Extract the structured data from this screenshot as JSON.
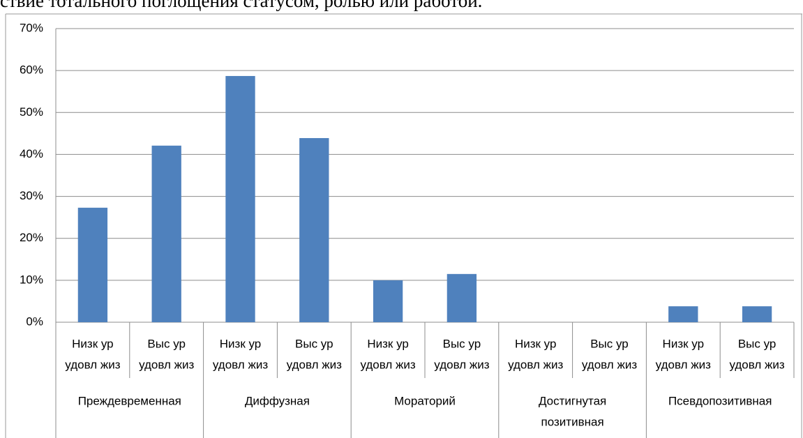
{
  "page_text": "ствие тотального поглощения статусом, ролью или работой.",
  "chart_data": {
    "type": "bar",
    "categories": [
      [
        "Низк ур",
        "удовл жиз"
      ],
      [
        "Выс ур",
        "удовл жиз"
      ],
      [
        "Низк ур",
        "удовл жиз"
      ],
      [
        "Выс ур",
        "удовл жиз"
      ],
      [
        "Низк ур",
        "удовл жиз"
      ],
      [
        "Выс ур",
        "удовл жиз"
      ],
      [
        "Низк ур",
        "удовл жиз"
      ],
      [
        "Выс ур",
        "удовл жиз"
      ],
      [
        "Низк ур",
        "удовл жиз"
      ],
      [
        "Выс ур",
        "удовл жиз"
      ]
    ],
    "groups": [
      [
        "Преждевременная"
      ],
      [
        "Диффузная"
      ],
      [
        "Мораторий"
      ],
      [
        "Достигнутая",
        "позитивная"
      ],
      [
        "Псевдопозитивная"
      ]
    ],
    "values": [
      27.3,
      42.1,
      58.7,
      43.9,
      10.0,
      11.5,
      0,
      0,
      3.8,
      3.8
    ],
    "color": "#4f81bd",
    "ylim": [
      0,
      70
    ],
    "yticks": [
      {
        "value": 0,
        "label": "0%"
      },
      {
        "value": 10,
        "label": "10%"
      },
      {
        "value": 20,
        "label": "20%"
      },
      {
        "value": 30,
        "label": "30%"
      },
      {
        "value": 40,
        "label": "40%"
      },
      {
        "value": 50,
        "label": "50%"
      },
      {
        "value": 60,
        "label": "60%"
      },
      {
        "value": 70,
        "label": "70%"
      }
    ],
    "grid": true
  }
}
